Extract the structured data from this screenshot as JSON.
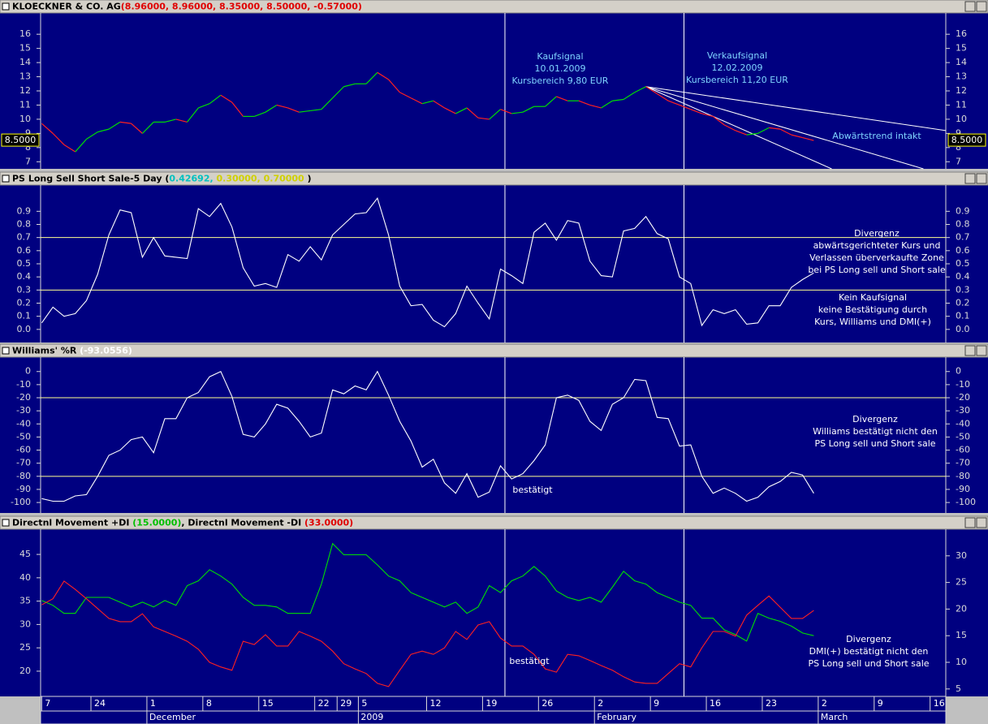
{
  "chart_data": [
    {
      "type": "line",
      "title_parts": [
        {
          "text": "KLOECKNER & CO. AG",
          "color": "#000000"
        },
        {
          "text": "(8.96000, 8.96000, 8.35000, 8.50000, -0.57000)",
          "color": "#e00000"
        }
      ],
      "ylim": [
        6.5,
        17.5
      ],
      "yticks": [
        7,
        8,
        9,
        10,
        11,
        12,
        13,
        14,
        15,
        16
      ],
      "series": [
        {
          "color": "#00e000",
          "down_color": "#ff2020",
          "values": [
            9.7,
            9.0,
            8.2,
            7.7,
            8.6,
            9.1,
            9.3,
            9.8,
            9.7,
            9.0,
            9.8,
            9.8,
            10.0,
            9.8,
            10.8,
            11.1,
            11.7,
            11.2,
            10.2,
            10.2,
            10.5,
            11.0,
            10.8,
            10.5,
            10.6,
            10.7,
            11.5,
            12.3,
            12.5,
            12.5,
            13.3,
            12.8,
            11.9,
            11.5,
            11.1,
            11.3,
            10.8,
            10.4,
            10.8,
            10.1,
            10.0,
            10.7,
            10.4,
            10.5,
            10.9,
            10.9,
            11.6,
            11.3,
            11.3,
            11.0,
            10.8,
            11.3,
            11.4,
            11.9,
            12.3,
            11.8,
            11.3,
            11.0,
            10.7,
            10.4,
            10.2,
            9.6,
            9.2,
            8.9,
            9.0,
            9.4,
            9.3,
            8.9,
            8.7,
            8.5
          ]
        }
      ],
      "last_label": "8.5000",
      "vlines": [
        41.4,
        57.4
      ],
      "trendlines": [
        {
          "x": [
            54,
            80.8
          ],
          "y": [
            12.3,
            9.2
          ]
        },
        {
          "x": [
            54,
            78.8
          ],
          "y": [
            12.3,
            6.5
          ]
        },
        {
          "x": [
            54,
            70.6
          ],
          "y": [
            12.3,
            6.5
          ]
        }
      ],
      "annotation_color": "#7fd4ff",
      "annotations": [
        [
          "Kaufsignal",
          "10.01.2009",
          "Kursbereich 9,80 EUR"
        ],
        [
          "Verkaufsignal",
          "12.02.2009",
          "Kursbereich 11,20 EUR"
        ],
        [
          "Abwärtstrend intakt"
        ]
      ]
    },
    {
      "type": "line",
      "title_parts": [
        {
          "text": "PS Long Sell Short Sale-5 Day",
          "color": "#000000"
        },
        {
          "text": " (",
          "color": "#000000"
        },
        {
          "text": "0.42692,",
          "color": "#00c0c0"
        },
        {
          "text": " 0.30000,",
          "color": "#d0d000"
        },
        {
          "text": " 0.70000",
          "color": "#d0d000"
        },
        {
          "text": " )",
          "color": "#000000"
        }
      ],
      "ylim": [
        -0.1,
        1.1
      ],
      "yticks": [
        {
          "value": 0,
          "label": "0.0"
        },
        0.1,
        0.2,
        0.3,
        0.4,
        0.5,
        0.6,
        0.7,
        0.8,
        0.9
      ],
      "hlines": [
        0.3,
        0.7
      ],
      "hline_color": "#ffff90",
      "series": [
        {
          "color": "#ffffff",
          "values": [
            0.05,
            0.17,
            0.1,
            0.12,
            0.22,
            0.42,
            0.72,
            0.91,
            0.89,
            0.55,
            0.7,
            0.56,
            0.55,
            0.54,
            0.92,
            0.86,
            0.96,
            0.78,
            0.47,
            0.33,
            0.35,
            0.32,
            0.57,
            0.52,
            0.63,
            0.53,
            0.72,
            0.8,
            0.88,
            0.89,
            1.0,
            0.72,
            0.33,
            0.18,
            0.19,
            0.07,
            0.02,
            0.12,
            0.33,
            0.2,
            0.08,
            0.46,
            0.41,
            0.35,
            0.74,
            0.81,
            0.68,
            0.83,
            0.81,
            0.52,
            0.41,
            0.4,
            0.75,
            0.77,
            0.86,
            0.73,
            0.69,
            0.4,
            0.35,
            0.03,
            0.15,
            0.12,
            0.15,
            0.04,
            0.05,
            0.18,
            0.18,
            0.32,
            0.38,
            0.43
          ]
        }
      ],
      "annotation_color": "#ffffff",
      "annotations": [
        [
          "Divergenz",
          "abwärtsgerichteter Kurs und",
          "Verlassen überverkaufte Zone",
          "bei PS Long sell und Short sale"
        ],
        [
          "Kein Kaufsignal",
          "keine Bestätigung durch",
          "Kurs, Williams und DMI(+)"
        ]
      ]
    },
    {
      "type": "line",
      "title_parts": [
        {
          "text": "Williams' %R",
          "color": "#000000"
        },
        {
          "text": " (-93.0556)",
          "color": "#ffffff"
        }
      ],
      "ylim": [
        -108,
        11
      ],
      "yticks": [
        0,
        -10,
        -20,
        -30,
        -40,
        -50,
        -60,
        -70,
        -80,
        -90,
        -100
      ],
      "hlines": [
        -20,
        -80
      ],
      "hline_color": "#ffff90",
      "series": [
        {
          "color": "#ffffff",
          "values": [
            -97,
            -99,
            -99,
            -95,
            -94,
            -80,
            -64,
            -60,
            -52,
            -50,
            -62,
            -36,
            -36,
            -20,
            -16,
            -4,
            0,
            -19,
            -48,
            -50,
            -40,
            -25,
            -28,
            -38,
            -50,
            -47,
            -14,
            -17,
            -11,
            -14,
            0,
            -18,
            -38,
            -53,
            -73,
            -67,
            -85,
            -93,
            -78,
            -96,
            -92,
            -72,
            -82,
            -78,
            -68,
            -56,
            -20,
            -18,
            -22,
            -38,
            -45,
            -25,
            -20,
            -6,
            -7,
            -35,
            -36,
            -57,
            -56,
            -80,
            -93,
            -89,
            -93,
            -99,
            -96,
            -88,
            -84,
            -77,
            -79,
            -93
          ]
        }
      ],
      "annotation_color": "#ffffff",
      "annotations": [
        [
          "Divergenz",
          "Williams bestätigt nicht den",
          "PS Long sell und Short sale"
        ],
        [
          "bestätigt"
        ]
      ]
    },
    {
      "type": "line",
      "title_parts": [
        {
          "text": "Directnl Movement +DI",
          "color": "#000000"
        },
        {
          "text": " (15.0000)",
          "color": "#00c000"
        },
        {
          "text": ", Directnl Movement -DI",
          "color": "#000000"
        },
        {
          "text": " (33.0000)",
          "color": "#e00000"
        }
      ],
      "ylim": [
        14.6,
        50.4
      ],
      "yticks": [
        20,
        25,
        30,
        35,
        40,
        45
      ],
      "y2lim": [
        3.6,
        35
      ],
      "y2ticks": [
        5,
        10,
        15,
        20,
        25,
        30
      ],
      "series": [
        {
          "color": "#00e000",
          "axis": "y2",
          "values": [
            21.6,
            20.7,
            19.2,
            19.2,
            22.2,
            22.2,
            22.2,
            21.3,
            20.4,
            21.3,
            20.4,
            21.6,
            20.7,
            24.4,
            25.3,
            27.4,
            26.2,
            24.7,
            22.2,
            20.7,
            20.7,
            20.4,
            19.2,
            19.2,
            19.2,
            24.7,
            32.3,
            30.2,
            30.2,
            30.2,
            28.3,
            26.2,
            25.3,
            23.1,
            22.2,
            21.3,
            20.4,
            21.3,
            19.2,
            20.4,
            24.4,
            23.1,
            25.3,
            26.2,
            28.0,
            26.2,
            23.4,
            22.2,
            21.6,
            22.2,
            21.3,
            24.1,
            27.1,
            25.3,
            24.7,
            23.1,
            22.2,
            21.3,
            20.7,
            18.3,
            18.3,
            16.1,
            15.2,
            14.0,
            19.2,
            18.3,
            17.7,
            16.8,
            15.5,
            15.0
          ]
        },
        {
          "color": "#ff2020",
          "values": [
            34.2,
            35.5,
            39.3,
            37.5,
            35.5,
            33.4,
            31.3,
            30.6,
            30.6,
            32.3,
            29.5,
            28.5,
            27.5,
            26.4,
            24.7,
            21.9,
            20.9,
            20.2,
            26.4,
            25.7,
            27.8,
            25.4,
            25.4,
            28.5,
            27.5,
            26.4,
            24.3,
            21.6,
            20.5,
            19.5,
            17.4,
            16.7,
            20.2,
            23.6,
            24.3,
            23.6,
            25.0,
            28.5,
            26.8,
            29.9,
            30.6,
            27.1,
            25.4,
            25.4,
            23.6,
            20.5,
            19.8,
            23.6,
            23.3,
            22.3,
            21.2,
            20.2,
            18.8,
            17.7,
            17.4,
            17.4,
            19.5,
            21.6,
            20.9,
            25.0,
            28.5,
            28.5,
            27.5,
            32.0,
            34.1,
            36.1,
            33.7,
            31.3,
            31.3,
            33.0
          ]
        }
      ],
      "annotation_color": "#ffffff",
      "annotations": [
        [
          "Divergenz",
          "DMI(+) bestätigt nicht den",
          "PS Long sell und Short sale"
        ],
        [
          "bestätigt"
        ]
      ],
      "xlim": [
        -0.1,
        80.8
      ],
      "xticks": [
        {
          "value": 0,
          "label": "7"
        },
        {
          "value": 4.4,
          "label": "24"
        },
        {
          "value": 9.4,
          "label": "1"
        },
        {
          "value": 14.4,
          "label": "8"
        },
        {
          "value": 19.4,
          "label": "15"
        },
        {
          "value": 24.4,
          "label": "22"
        },
        {
          "value": 26.4,
          "label": "29"
        },
        {
          "value": 28.3,
          "label": "5"
        },
        {
          "value": 34.4,
          "label": "12"
        },
        {
          "value": 39.4,
          "label": "19"
        },
        {
          "value": 44.4,
          "label": "26"
        },
        {
          "value": 49.4,
          "label": "2"
        },
        {
          "value": 54.4,
          "label": "9"
        },
        {
          "value": 59.4,
          "label": "16"
        },
        {
          "value": 64.4,
          "label": "23"
        },
        {
          "value": 69.4,
          "label": "2"
        },
        {
          "value": 74.4,
          "label": "9"
        },
        {
          "value": 79.4,
          "label": "16"
        }
      ],
      "month_ticks": [
        {
          "value": 9.4,
          "label": "December"
        },
        {
          "value": 28.3,
          "label": "2009"
        },
        {
          "value": 49.4,
          "label": "February"
        },
        {
          "value": 69.4,
          "label": "March"
        }
      ]
    }
  ]
}
